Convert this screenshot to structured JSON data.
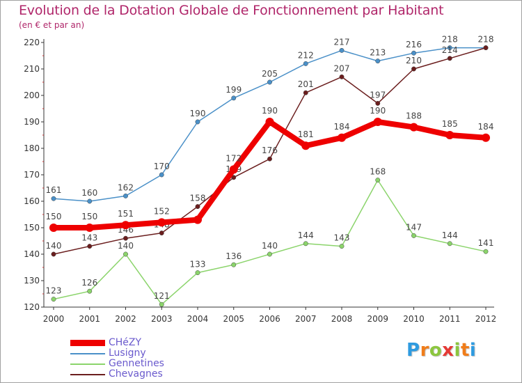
{
  "title": "Evolution de la Dotation Globale de Fonctionnement par Habitant",
  "subtitle": "(en € et par an)",
  "logo": {
    "letters": [
      "P",
      "r",
      "o",
      "x",
      "i",
      "t",
      "i"
    ],
    "colors": [
      "#2e9be0",
      "#f07d1a",
      "#8cc63f",
      "#e53935",
      "#8cc63f",
      "#f07d1a",
      "#2e9be0"
    ]
  },
  "chart_data": {
    "type": "line",
    "title": "Evolution de la Dotation Globale de Fonctionnement par Habitant",
    "subtitle": "(en € et par an)",
    "xlabel": "",
    "ylabel": "",
    "x": [
      "2000",
      "2001",
      "2002",
      "2003",
      "2004",
      "2005",
      "2006",
      "2007",
      "2008",
      "2009",
      "2010",
      "2011",
      "2012"
    ],
    "ylim": [
      120,
      220
    ],
    "yticks": [
      120,
      130,
      140,
      150,
      160,
      170,
      180,
      190,
      200,
      210,
      220
    ],
    "grid": false,
    "legend_position": "bottom-left",
    "series": [
      {
        "name": "Lusigny",
        "color": "#4a90c8",
        "values": [
          161,
          160,
          162,
          170,
          190,
          199,
          205,
          212,
          217,
          213,
          216,
          218,
          218
        ],
        "labels": [
          "161",
          "160",
          "162",
          "170",
          "190",
          "199",
          "205",
          "212",
          "217",
          "213",
          "216",
          "218",
          ""
        ]
      },
      {
        "name": "Gennetines",
        "color": "#8bd46b",
        "values": [
          123,
          126,
          140,
          121,
          133,
          136,
          140,
          144,
          143,
          168,
          147,
          144,
          141
        ],
        "labels": [
          "123",
          "126",
          "140",
          "121",
          "133",
          "136",
          "140",
          "144",
          "143",
          "168",
          "147",
          "144",
          "141"
        ]
      },
      {
        "name": "Chevagnes",
        "color": "#6b1e1e",
        "values": [
          140,
          143,
          146,
          148,
          158,
          169,
          176,
          201,
          207,
          197,
          210,
          214,
          218
        ],
        "labels": [
          "140",
          "143",
          "146",
          "148",
          "158",
          "169",
          "176",
          "201",
          "207",
          "197",
          "210",
          "214",
          "218"
        ]
      },
      {
        "name": "CHéZY",
        "color": "#ee0000",
        "values": [
          150,
          150,
          151,
          152,
          153,
          172,
          190,
          181,
          184,
          190,
          188,
          185,
          184
        ],
        "labels": [
          "150",
          "150",
          "151",
          "152",
          "",
          "172",
          "190",
          "181",
          "184",
          "190",
          "188",
          "185",
          "184"
        ]
      }
    ],
    "legend": [
      "CHéZY",
      "Lusigny",
      "Gennetines",
      "Chevagnes"
    ]
  }
}
